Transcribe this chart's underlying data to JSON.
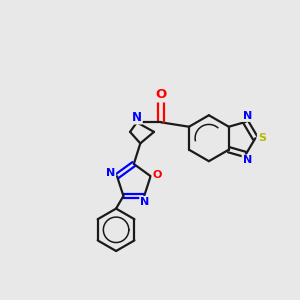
{
  "bg_color": "#e8e8e8",
  "bond_color": "#1a1a1a",
  "nitrogen_color": "#0000ff",
  "oxygen_color": "#ff0000",
  "sulfur_color": "#b8b800",
  "lw": 1.6,
  "lw_inner": 1.1,
  "figsize": [
    3.0,
    3.0
  ],
  "dpi": 100,
  "xlim": [
    0,
    10
  ],
  "ylim": [
    0,
    10
  ]
}
